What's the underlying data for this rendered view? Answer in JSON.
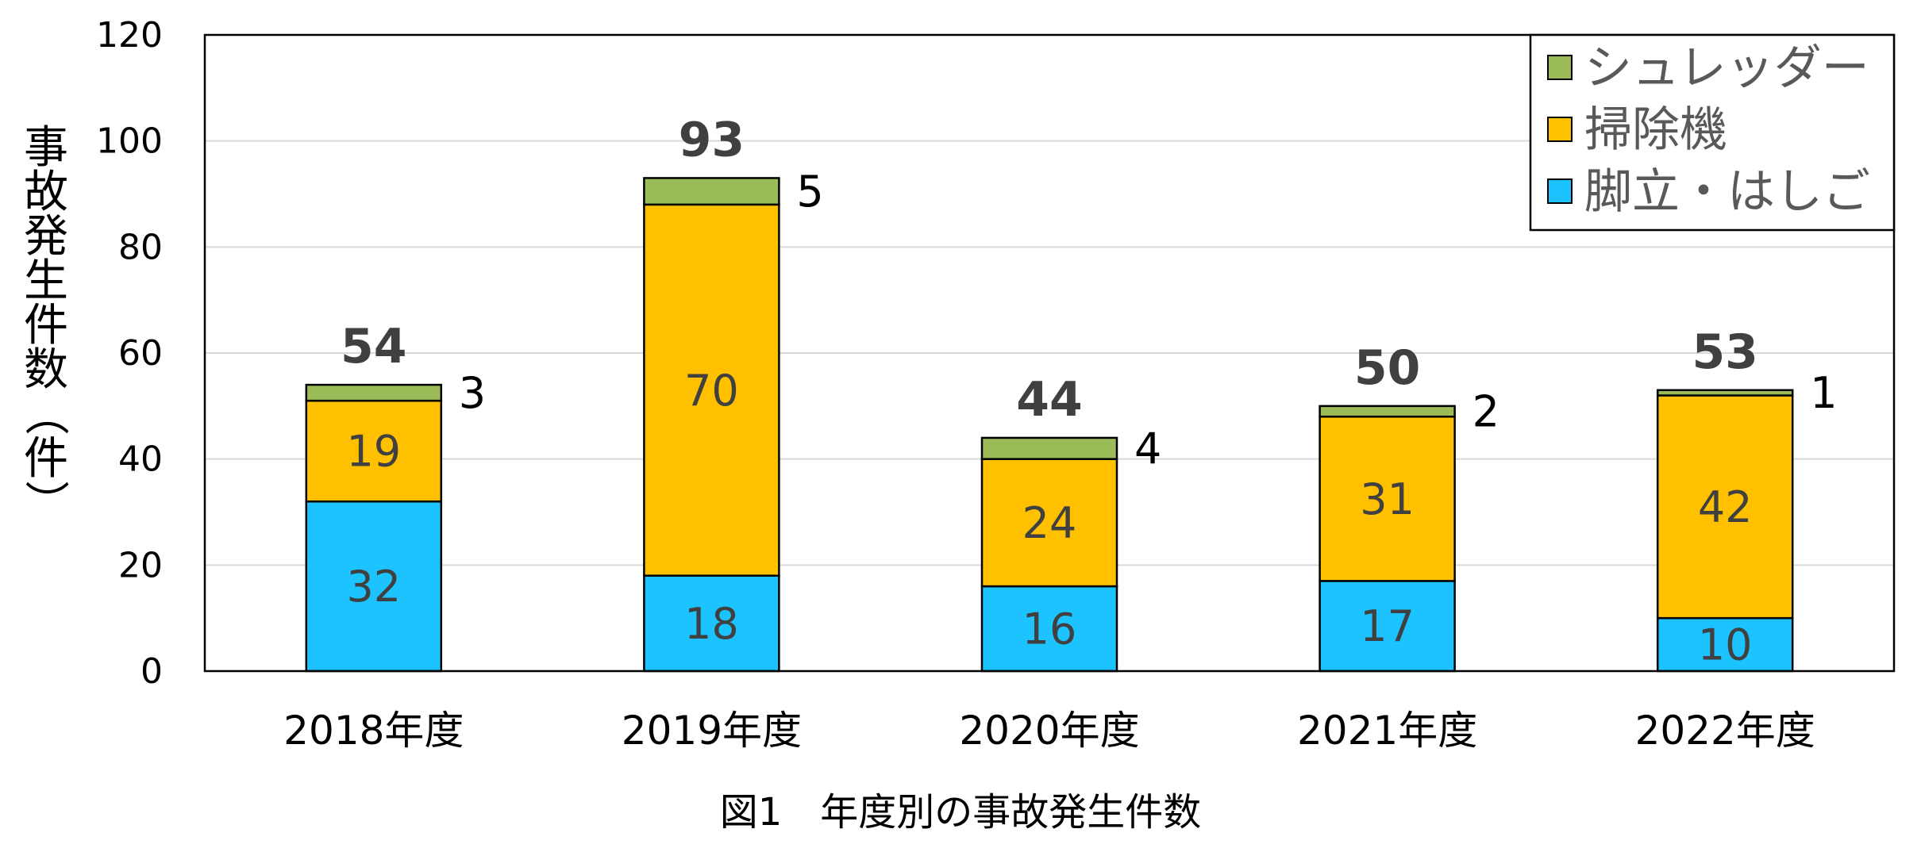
{
  "chart_data": {
    "type": "bar",
    "stacked": true,
    "categories": [
      "2018年度",
      "2019年度",
      "2020年度",
      "2021年度",
      "2022年度"
    ],
    "series": [
      {
        "name": "脚立・はしご",
        "color": "#1cc3ff",
        "values": [
          32,
          18,
          16,
          17,
          10
        ]
      },
      {
        "name": "掃除機",
        "color": "#ffc000",
        "values": [
          19,
          70,
          24,
          31,
          42
        ]
      },
      {
        "name": "シュレッダー",
        "color": "#9bbb59",
        "values": [
          3,
          5,
          4,
          2,
          1
        ]
      }
    ],
    "totals": [
      54,
      93,
      44,
      50,
      53
    ],
    "ylabel": "事故発生件数（件）",
    "ylim": [
      0,
      120
    ],
    "yticks": [
      0,
      20,
      40,
      60,
      80,
      100,
      120
    ],
    "grid": true,
    "legend": "top-right",
    "caption": "図1　年度別の事故発生件数"
  }
}
